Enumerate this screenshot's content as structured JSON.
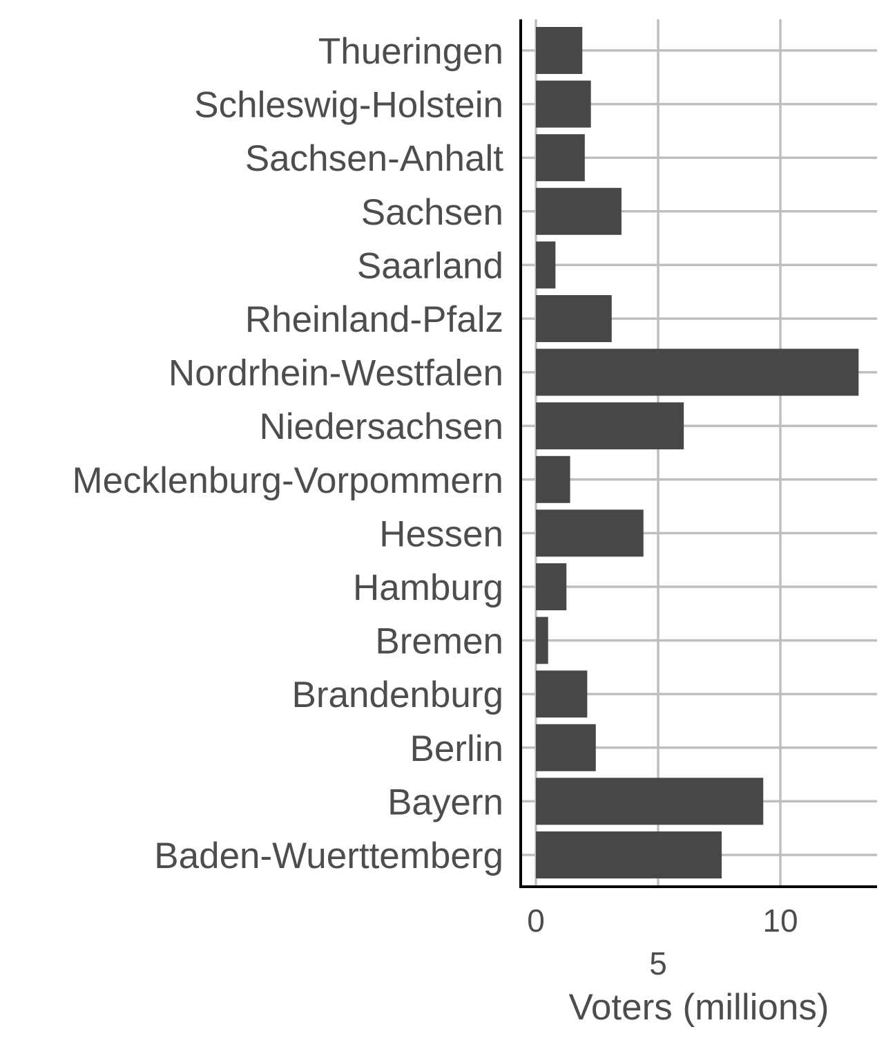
{
  "chart_data": {
    "type": "bar",
    "orientation": "horizontal",
    "title": "",
    "xlabel": "Voters (millions)",
    "ylabel": "",
    "xlim": [
      0,
      13.9
    ],
    "grid": true,
    "legend": "none",
    "bar_color": "#474747",
    "grid_color": "#bebebe",
    "axis_color": "#000000",
    "label_color": "#4d4d4d",
    "x_ticks": [
      {
        "value": 0,
        "label": "0",
        "row": 0
      },
      {
        "value": 5,
        "label": "5",
        "row": 1
      },
      {
        "value": 10,
        "label": "10",
        "row": 0
      }
    ],
    "categories": [
      "Thueringen",
      "Schleswig-Holstein",
      "Sachsen-Anhalt",
      "Sachsen",
      "Saarland",
      "Rheinland-Pfalz",
      "Nordrhein-Westfalen",
      "Niedersachsen",
      "Mecklenburg-Vorpommern",
      "Hessen",
      "Hamburg",
      "Bremen",
      "Brandenburg",
      "Berlin",
      "Bayern",
      "Baden-Wuerttemberg"
    ],
    "values": [
      1.9,
      2.25,
      2.0,
      3.5,
      0.8,
      3.1,
      13.2,
      6.05,
      1.4,
      4.4,
      1.25,
      0.5,
      2.1,
      2.45,
      9.3,
      7.6
    ]
  }
}
